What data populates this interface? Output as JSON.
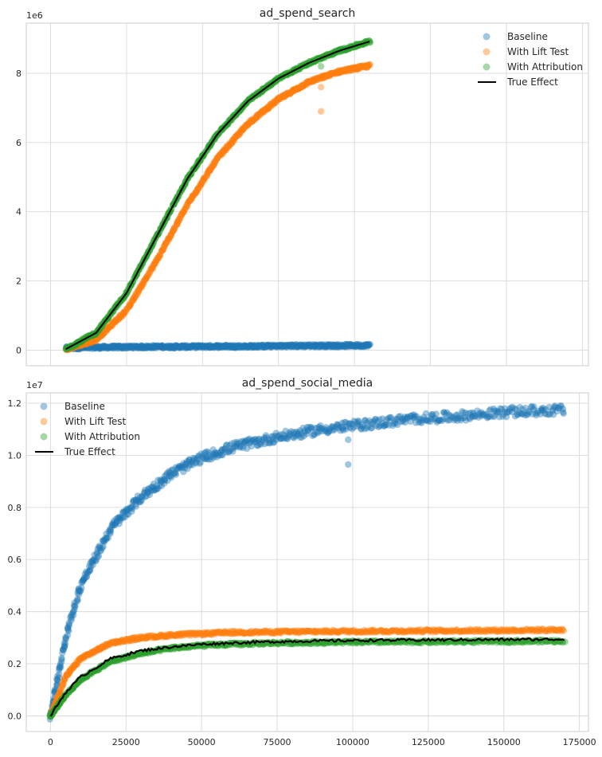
{
  "chart_data": [
    {
      "type": "scatter",
      "title": "ad_spend_search",
      "xlabel": "",
      "ylabel": "",
      "y_offset_label": "1e6",
      "xlim": [
        -8000,
        177000
      ],
      "ylim": [
        -0.45,
        9.45
      ],
      "x_ticks": [
        0,
        25000,
        50000,
        75000,
        100000,
        125000,
        150000,
        175000
      ],
      "x_tick_labels_visible": false,
      "y_ticks": [
        0,
        2,
        4,
        6,
        8
      ],
      "y_tick_labels": [
        "0",
        "2",
        "4",
        "6",
        "8"
      ],
      "grid": true,
      "legend_position": "top-right",
      "x_range": [
        5000,
        105000
      ],
      "series": [
        {
          "name": "Baseline",
          "kind": "scatter",
          "color": "#1f77b4",
          "x": [
            5000,
            15000,
            25000,
            35000,
            45000,
            55000,
            65000,
            75000,
            85000,
            95000,
            105000
          ],
          "y": [
            0.06,
            0.08,
            0.09,
            0.1,
            0.1,
            0.11,
            0.11,
            0.12,
            0.13,
            0.13,
            0.14
          ]
        },
        {
          "name": "With Lift Test",
          "kind": "scatter",
          "color": "#ff7f0e",
          "x": [
            5000,
            15000,
            25000,
            35000,
            45000,
            55000,
            65000,
            75000,
            85000,
            95000,
            105000
          ],
          "y": [
            0.02,
            0.3,
            1.15,
            2.6,
            4.2,
            5.55,
            6.55,
            7.25,
            7.75,
            8.05,
            8.22
          ],
          "outliers": [
            {
              "x": 89000,
              "y": 6.9
            },
            {
              "x": 89000,
              "y": 7.6
            }
          ]
        },
        {
          "name": "With Attribution",
          "kind": "scatter",
          "color": "#2ca02c",
          "x": [
            5000,
            15000,
            25000,
            35000,
            45000,
            55000,
            65000,
            75000,
            85000,
            95000,
            105000
          ],
          "y": [
            0.03,
            0.5,
            1.65,
            3.3,
            4.95,
            6.25,
            7.2,
            7.85,
            8.3,
            8.65,
            8.92
          ],
          "outliers": [
            {
              "x": 89000,
              "y": 8.2
            }
          ]
        },
        {
          "name": "True Effect",
          "kind": "line",
          "color": "#000000",
          "x": [
            5000,
            15000,
            25000,
            35000,
            45000,
            55000,
            65000,
            75000,
            85000,
            95000,
            105000
          ],
          "y": [
            0.03,
            0.5,
            1.65,
            3.3,
            4.95,
            6.25,
            7.2,
            7.85,
            8.3,
            8.65,
            8.92
          ]
        }
      ]
    },
    {
      "type": "scatter",
      "title": "ad_spend_social_media",
      "xlabel": "",
      "ylabel": "",
      "y_offset_label": "1e7",
      "xlim": [
        -8000,
        178000
      ],
      "ylim": [
        -0.06,
        1.24
      ],
      "x_ticks": [
        0,
        25000,
        50000,
        75000,
        100000,
        125000,
        150000,
        175000
      ],
      "x_tick_labels": [
        "0",
        "25000",
        "50000",
        "75000",
        "100000",
        "125000",
        "150000",
        "175000"
      ],
      "y_ticks": [
        0.0,
        0.2,
        0.4,
        0.6,
        0.8,
        1.0,
        1.2
      ],
      "y_tick_labels": [
        "0.0",
        "0.2",
        "0.4",
        "0.6",
        "0.8",
        "1.0",
        "1.2"
      ],
      "grid": true,
      "legend_position": "top-left",
      "x_range": [
        0,
        170000
      ],
      "series": [
        {
          "name": "Baseline",
          "kind": "scatter",
          "color": "#1f77b4",
          "x": [
            0,
            5000,
            10000,
            20000,
            30000,
            40000,
            50000,
            60000,
            75000,
            90000,
            105000,
            120000,
            135000,
            150000,
            170000
          ],
          "y": [
            0.0,
            0.3,
            0.5,
            0.72,
            0.84,
            0.93,
            0.99,
            1.03,
            1.07,
            1.1,
            1.12,
            1.14,
            1.15,
            1.165,
            1.175
          ],
          "outliers": [
            {
              "x": 98500,
              "y": 1.06
            },
            {
              "x": 98500,
              "y": 0.965
            }
          ]
        },
        {
          "name": "With Lift Test",
          "kind": "scatter",
          "color": "#ff7f0e",
          "x": [
            0,
            5000,
            10000,
            20000,
            30000,
            40000,
            50000,
            60000,
            75000,
            90000,
            105000,
            120000,
            135000,
            150000,
            170000
          ],
          "y": [
            0.0,
            0.15,
            0.22,
            0.28,
            0.3,
            0.31,
            0.315,
            0.32,
            0.322,
            0.324,
            0.325,
            0.326,
            0.327,
            0.328,
            0.33
          ]
        },
        {
          "name": "With Attribution",
          "kind": "scatter",
          "color": "#2ca02c",
          "x": [
            0,
            5000,
            10000,
            20000,
            30000,
            40000,
            50000,
            60000,
            75000,
            90000,
            105000,
            120000,
            135000,
            150000,
            170000
          ],
          "y": [
            0.0,
            0.08,
            0.14,
            0.21,
            0.24,
            0.26,
            0.27,
            0.275,
            0.28,
            0.282,
            0.283,
            0.284,
            0.285,
            0.286,
            0.287
          ]
        },
        {
          "name": "True Effect",
          "kind": "line",
          "color": "#000000",
          "x": [
            0,
            5000,
            10000,
            20000,
            30000,
            40000,
            50000,
            60000,
            75000,
            90000,
            105000,
            120000,
            135000,
            150000,
            170000
          ],
          "y": [
            0.0,
            0.09,
            0.15,
            0.22,
            0.25,
            0.265,
            0.275,
            0.28,
            0.285,
            0.288,
            0.29,
            0.291,
            0.292,
            0.293,
            0.294
          ]
        }
      ]
    }
  ]
}
